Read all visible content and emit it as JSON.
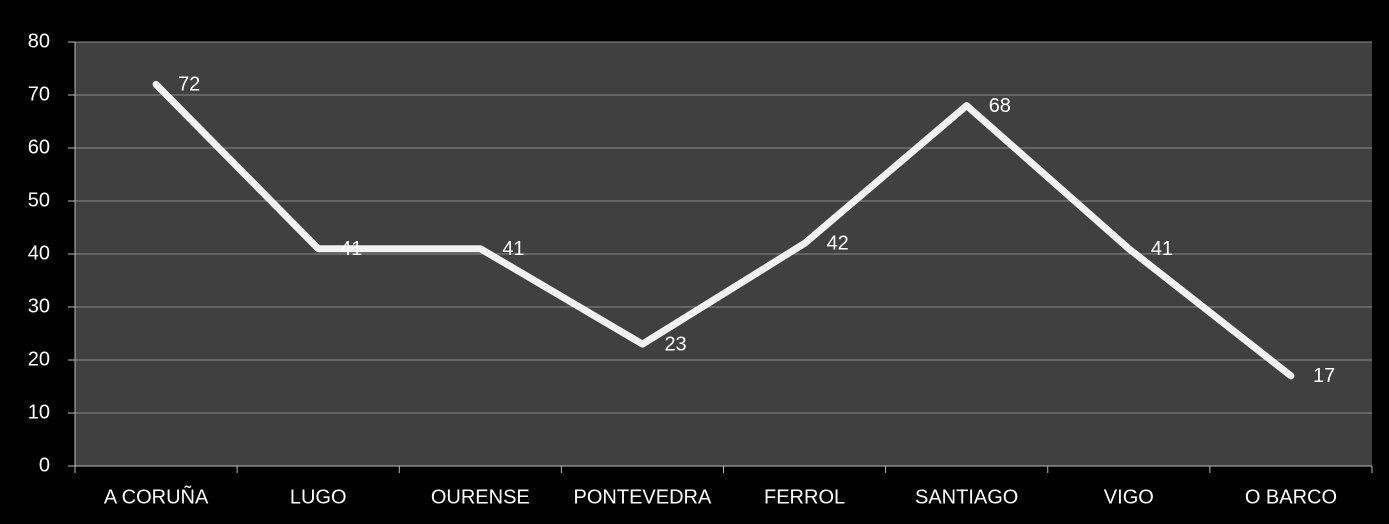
{
  "chart_data": {
    "type": "line",
    "categories": [
      "A CORUÑA",
      "LUGO",
      "OURENSE",
      "PONTEVEDRA",
      "FERROL",
      "SANTIAGO",
      "VIGO",
      "O BARCO"
    ],
    "series": [
      {
        "color": "#f2f2f2",
        "values": [
          72,
          41,
          41,
          23,
          42,
          68,
          41,
          17
        ]
      }
    ],
    "ylim": [
      0,
      80
    ],
    "yticks": [
      0,
      10,
      20,
      30,
      40,
      50,
      60,
      70,
      80
    ],
    "grid": true
  }
}
